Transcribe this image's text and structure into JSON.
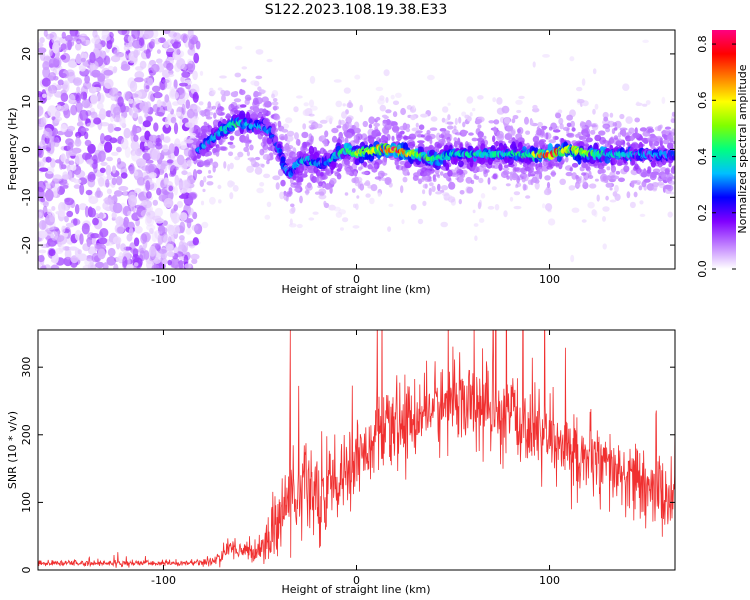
{
  "title": "S122.2023.108.19.38.E33",
  "chart_data": [
    {
      "type": "heatmap",
      "xlabel": "Height of straight line (km)",
      "ylabel": "Frequency (Hz)",
      "xlim": [
        -165,
        165
      ],
      "ylim": [
        -25,
        25
      ],
      "xticks": [
        -100,
        0,
        100
      ],
      "yticks": [
        -20,
        -10,
        0,
        10,
        20
      ],
      "colorbar": {
        "label": "Normalized spectral amplitude",
        "range": [
          0,
          0.85
        ],
        "ticks": [
          0.0,
          0.2,
          0.4,
          0.6,
          0.8
        ],
        "colormap": [
          "#ffffff",
          "#c080ff",
          "#8000ff",
          "#0000ff",
          "#00c0ff",
          "#00ff80",
          "#80ff00",
          "#ffff00",
          "#ff8000",
          "#ff0000",
          "#ff0080"
        ]
      },
      "ridge": {
        "x": [
          -82,
          -75,
          -70,
          -65,
          -60,
          -55,
          -50,
          -45,
          -40,
          -37,
          -34,
          -30,
          -25,
          -20,
          -15,
          -10,
          -5,
          0,
          10,
          20,
          30,
          40,
          50,
          60,
          70,
          80,
          90,
          100,
          110,
          120,
          130,
          140,
          150,
          160,
          165
        ],
        "y": [
          0,
          2,
          4,
          5,
          6,
          5,
          5,
          4,
          0,
          -4,
          -5,
          -3,
          -2,
          -3,
          -3,
          -1,
          0,
          -1,
          0,
          0,
          -1,
          -2,
          -1,
          -1,
          -1,
          -1,
          -1,
          -1,
          0,
          -1,
          -1,
          -1,
          -1,
          -1,
          -1
        ],
        "amplitude": [
          0.3,
          0.35,
          0.4,
          0.4,
          0.45,
          0.35,
          0.35,
          0.3,
          0.3,
          0.3,
          0.3,
          0.35,
          0.35,
          0.35,
          0.3,
          0.4,
          0.45,
          0.5,
          0.6,
          0.82,
          0.5,
          0.45,
          0.4,
          0.4,
          0.4,
          0.4,
          0.45,
          0.8,
          0.6,
          0.5,
          0.4,
          0.35,
          0.35,
          0.3,
          0.3
        ]
      },
      "noise_region_x": [
        -165,
        -82
      ],
      "grid": false
    },
    {
      "type": "line",
      "xlabel": "Height of straight line (km)",
      "ylabel": "SNR (10 * v/v)",
      "xlim": [
        -165,
        165
      ],
      "ylim": [
        0,
        355
      ],
      "xticks": [
        -100,
        0,
        100
      ],
      "yticks": [
        0,
        100,
        200,
        300
      ],
      "color": "#f03030",
      "envelope": {
        "x": [
          -165,
          -150,
          -120,
          -90,
          -75,
          -70,
          -65,
          -60,
          -55,
          -50,
          -45,
          -40,
          -35,
          -30,
          -25,
          -20,
          -15,
          -10,
          -5,
          0,
          10,
          20,
          30,
          40,
          50,
          60,
          70,
          80,
          90,
          100,
          110,
          120,
          130,
          140,
          150,
          160,
          165
        ],
        "mean": [
          10,
          10,
          10,
          10,
          12,
          20,
          35,
          30,
          25,
          30,
          50,
          70,
          110,
          110,
          120,
          110,
          130,
          120,
          140,
          170,
          190,
          210,
          225,
          240,
          245,
          245,
          230,
          225,
          210,
          190,
          175,
          165,
          150,
          135,
          120,
          110,
          105
        ],
        "spread": [
          4,
          4,
          4,
          4,
          6,
          10,
          15,
          15,
          12,
          20,
          35,
          50,
          60,
          60,
          70,
          70,
          70,
          60,
          60,
          50,
          50,
          55,
          55,
          55,
          60,
          60,
          60,
          60,
          55,
          55,
          55,
          50,
          50,
          50,
          50,
          50,
          50
        ]
      },
      "grid": false
    }
  ]
}
